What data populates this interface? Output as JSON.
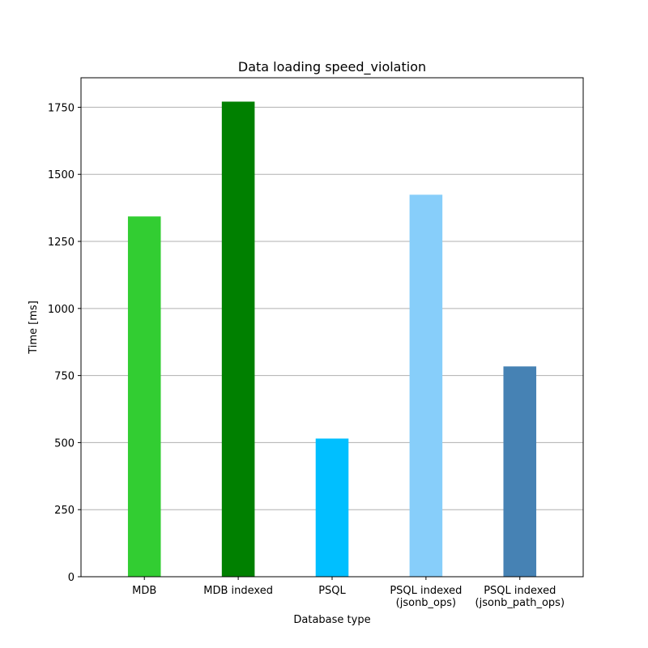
{
  "chart_data": {
    "type": "bar",
    "title": "Data loading speed_violation",
    "xlabel": "Database type",
    "ylabel": "Time [ms]",
    "categories": [
      [
        "MDB"
      ],
      [
        "MDB indexed"
      ],
      [
        "PSQL"
      ],
      [
        "PSQL indexed",
        "(jsonb_ops)"
      ],
      [
        "PSQL indexed",
        "(jsonb_path_ops)"
      ]
    ],
    "values": [
      1343,
      1771,
      515,
      1424,
      784
    ],
    "colors": [
      "#32cd32",
      "#008000",
      "#00bfff",
      "#87cefa",
      "#4682b4"
    ],
    "ylim": [
      0,
      1860
    ],
    "yticks": [
      0,
      250,
      500,
      750,
      1000,
      1250,
      1500,
      1750
    ],
    "grid": "y"
  }
}
